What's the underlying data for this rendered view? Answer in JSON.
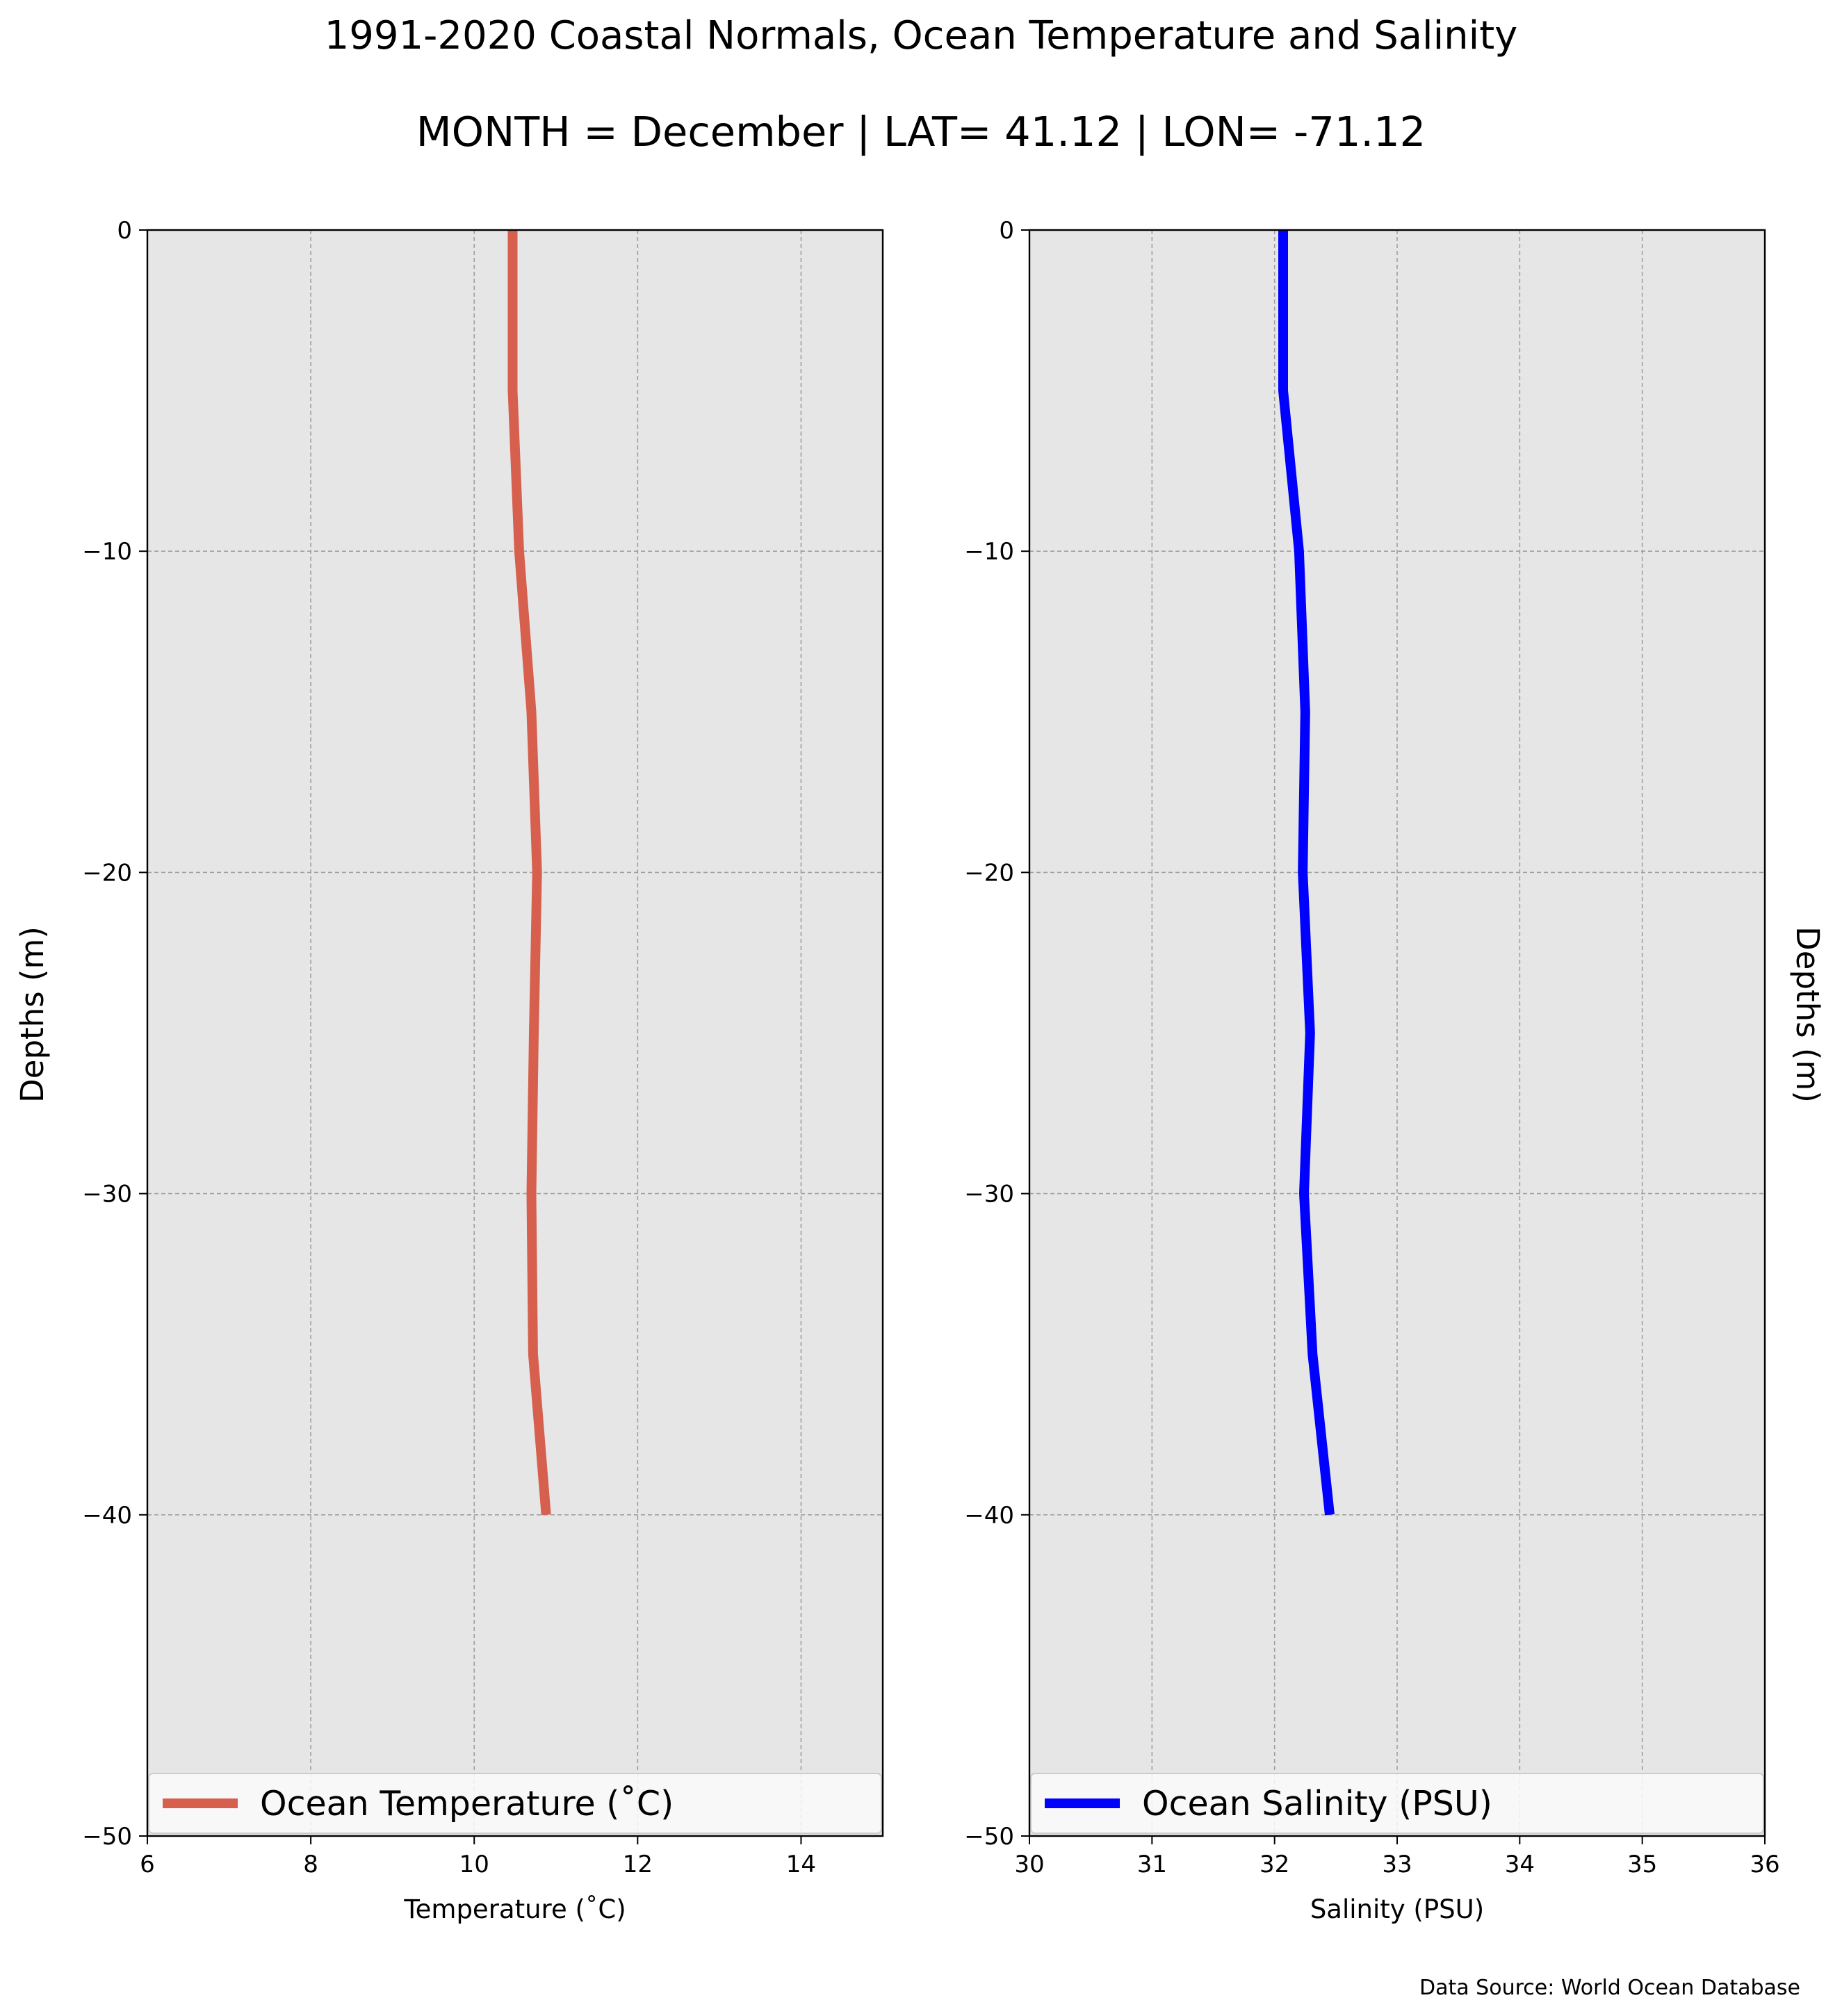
{
  "title": "1991-2020 Coastal Normals, Ocean Temperature and Salinity",
  "subtitle": "MONTH = December | LAT= 41.12 | LON= -71.12",
  "source": "Data Source: World Ocean Database",
  "colors": {
    "background": "#ffffff",
    "plot_bg": "#e6e6e6",
    "grid": "#a0a0a0",
    "temperature": "#d65f4e",
    "salinity": "#0000ff"
  },
  "chart_data": [
    {
      "type": "line",
      "xlabel": "Temperature ($^\\circ$C)",
      "xlabel_display": "Temperature (˚C)",
      "ylabel": "Depths (m)",
      "xlim": [
        6,
        15
      ],
      "ylim": [
        -50,
        0
      ],
      "xticks": [
        6,
        8,
        10,
        12,
        14
      ],
      "xtick_labels": [
        "6",
        "8",
        "10",
        "12",
        "14"
      ],
      "yticks": [
        0,
        -10,
        -20,
        -30,
        -40,
        -50
      ],
      "ytick_labels": [
        "0",
        "−10",
        "−20",
        "−30",
        "−40",
        "−50"
      ],
      "grid": true,
      "legend_position": "bottom",
      "series": [
        {
          "name": "Ocean Temperature ($^\\circ$C)",
          "name_display": "Ocean Temperature (˚C)",
          "color": "#d65f4e",
          "x": [
            10.47,
            10.47,
            10.55,
            10.7,
            10.77,
            10.73,
            10.7,
            10.72,
            10.88
          ],
          "y": [
            0,
            -5,
            -10,
            -15,
            -20,
            -25,
            -30,
            -35,
            -40
          ]
        }
      ]
    },
    {
      "type": "line",
      "xlabel": "Salinity (PSU)",
      "ylabel": "Depths (m)",
      "xlim": [
        30,
        36
      ],
      "ylim": [
        -50,
        0
      ],
      "xticks": [
        30,
        31,
        32,
        33,
        34,
        35,
        36
      ],
      "xtick_labels": [
        "30",
        "31",
        "32",
        "33",
        "34",
        "35",
        "36"
      ],
      "yticks": [
        0,
        -10,
        -20,
        -30,
        -40,
        -50
      ],
      "ytick_labels": [
        "0",
        "−10",
        "−20",
        "−30",
        "−40",
        "−50"
      ],
      "grid": true,
      "legend_position": "bottom",
      "series": [
        {
          "name": "Ocean Salinity (PSU)",
          "color": "#0000ff",
          "x": [
            32.07,
            32.07,
            32.2,
            32.25,
            32.23,
            32.29,
            32.24,
            32.31,
            32.45
          ],
          "y": [
            0,
            -5,
            -10,
            -15,
            -20,
            -25,
            -30,
            -35,
            -40
          ]
        }
      ]
    }
  ]
}
